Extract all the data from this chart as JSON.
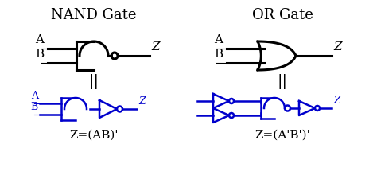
{
  "title_left": "NAND Gate",
  "title_right": "OR Gate",
  "eq_symbol": "||",
  "formula_left": "Z=(AB)'",
  "formula_right": "Z=(A'B')'",
  "black": "#000000",
  "blue": "#0000CC",
  "bg": "#ffffff",
  "lw_black": 2.2,
  "lw_blue": 1.8
}
